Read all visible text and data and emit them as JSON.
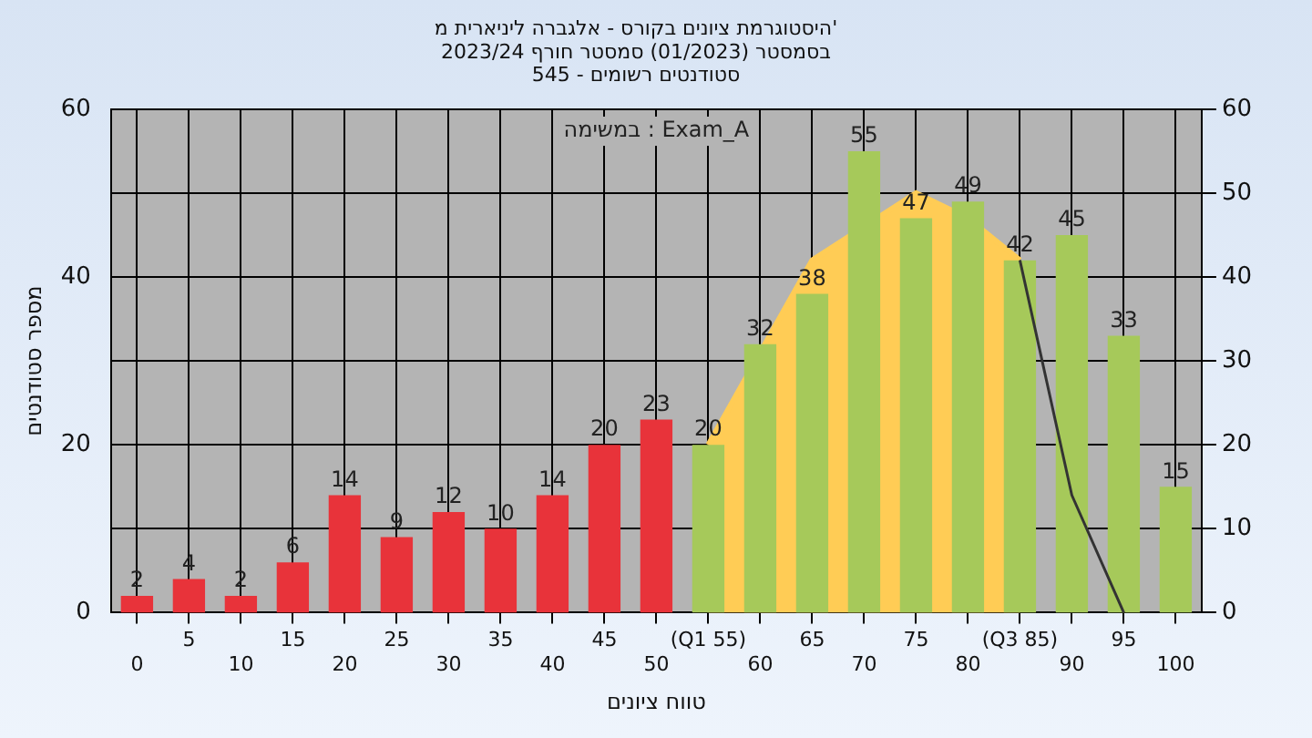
{
  "chart_data": {
    "type": "bar",
    "title": "היסטוגרמת ציונים בקורס - אלגברה ליניארית מ'\nבסמסטר (01/2023) סמסטר חורף 2023/24\nסטודנטים רשומים - 545",
    "xlabel": "טווח ציונים",
    "ylabel": "מספר סטודנטים",
    "annotations": [
      "במשימה : Exam_A"
    ],
    "categories": [
      "0",
      "5",
      "10",
      "15",
      "20",
      "25",
      "30",
      "35",
      "40",
      "45",
      "50",
      "(Q1 55)",
      "60",
      "65",
      "70",
      "75",
      "80",
      "(Q3 85)",
      "90",
      "95",
      "100"
    ],
    "series": [
      {
        "type": "area",
        "color": "#ffcc55",
        "values": [
          null,
          null,
          null,
          null,
          null,
          null,
          null,
          null,
          null,
          null,
          null,
          20,
          31,
          42,
          46,
          50,
          47,
          42,
          null,
          null,
          null
        ]
      },
      {
        "type": "line",
        "color": "#333333",
        "values": [
          null,
          null,
          null,
          null,
          null,
          null,
          null,
          null,
          null,
          null,
          null,
          null,
          null,
          null,
          null,
          null,
          null,
          42,
          14,
          0,
          null
        ]
      },
      {
        "colors": [
          "#e8333a",
          "#e8333a",
          "#e8333a",
          "#e8333a",
          "#e8333a",
          "#e8333a",
          "#e8333a",
          "#e8333a",
          "#e8333a",
          "#e8333a",
          "#e8333a",
          "#a6c95a",
          "#a6c95a",
          "#a6c95a",
          "#a6c95a",
          "#a6c95a",
          "#a6c95a",
          "#a6c95a",
          "#a6c95a",
          "#a6c95a",
          "#a6c95a"
        ],
        "values": [
          2,
          4,
          2,
          6,
          14,
          9,
          12,
          10,
          14,
          20,
          23,
          20,
          32,
          38,
          55,
          47,
          49,
          42,
          45,
          33,
          15
        ],
        "value_labels": [
          "2",
          "4",
          "2",
          "6",
          "14",
          "9",
          "12",
          "10",
          "14",
          "20",
          "23",
          "20",
          "32",
          "38",
          "55",
          "47",
          "49",
          "42",
          "45",
          "33",
          "15"
        ]
      }
    ],
    "ylim": [
      0,
      60
    ],
    "yticks": [
      0,
      20,
      40,
      60
    ],
    "y2lim": [
      0,
      60
    ],
    "y2ticks": [
      0,
      10,
      20,
      30,
      40,
      50,
      60
    ],
    "grid": true,
    "legend": false
  }
}
